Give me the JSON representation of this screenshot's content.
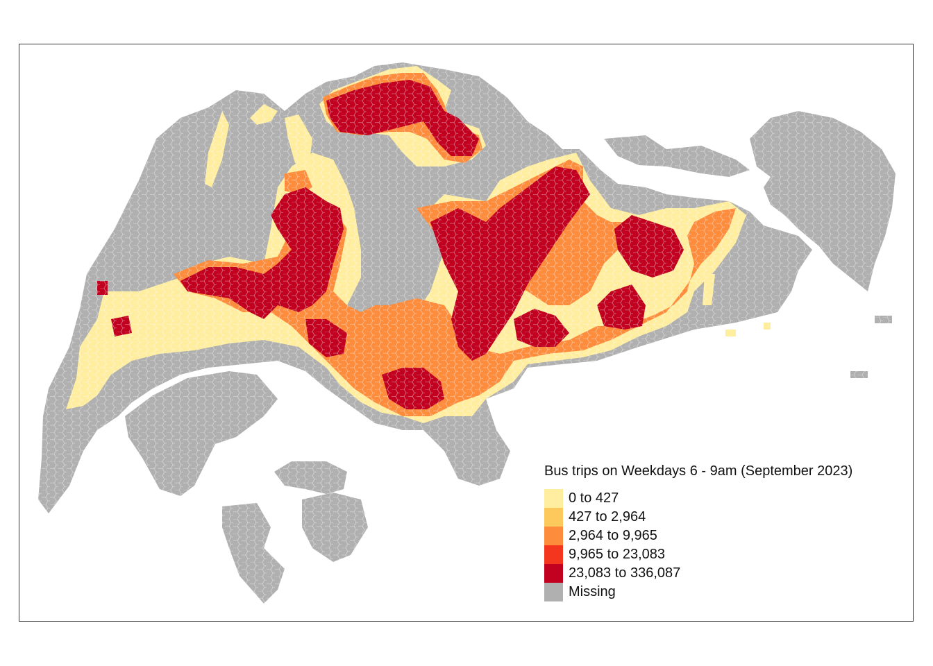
{
  "legend": {
    "title": "Bus trips on Weekdays 6 - 9am (September 2023)",
    "classes": [
      {
        "label": "0 to 427",
        "color": "#FFEDA0"
      },
      {
        "label": "427 to 2,964",
        "color": "#FEC95C"
      },
      {
        "label": "2,964 to 9,965",
        "color": "#FD8C3C"
      },
      {
        "label": "9,965 to 23,083",
        "color": "#F4361F"
      },
      {
        "label": "23,083 to 336,087",
        "color": "#C20020"
      },
      {
        "label": "Missing",
        "color": "#B0B0B0"
      }
    ]
  },
  "colors": {
    "missing": "#B0B0B0",
    "frame": "#333333",
    "background": "#FFFFFF"
  }
}
